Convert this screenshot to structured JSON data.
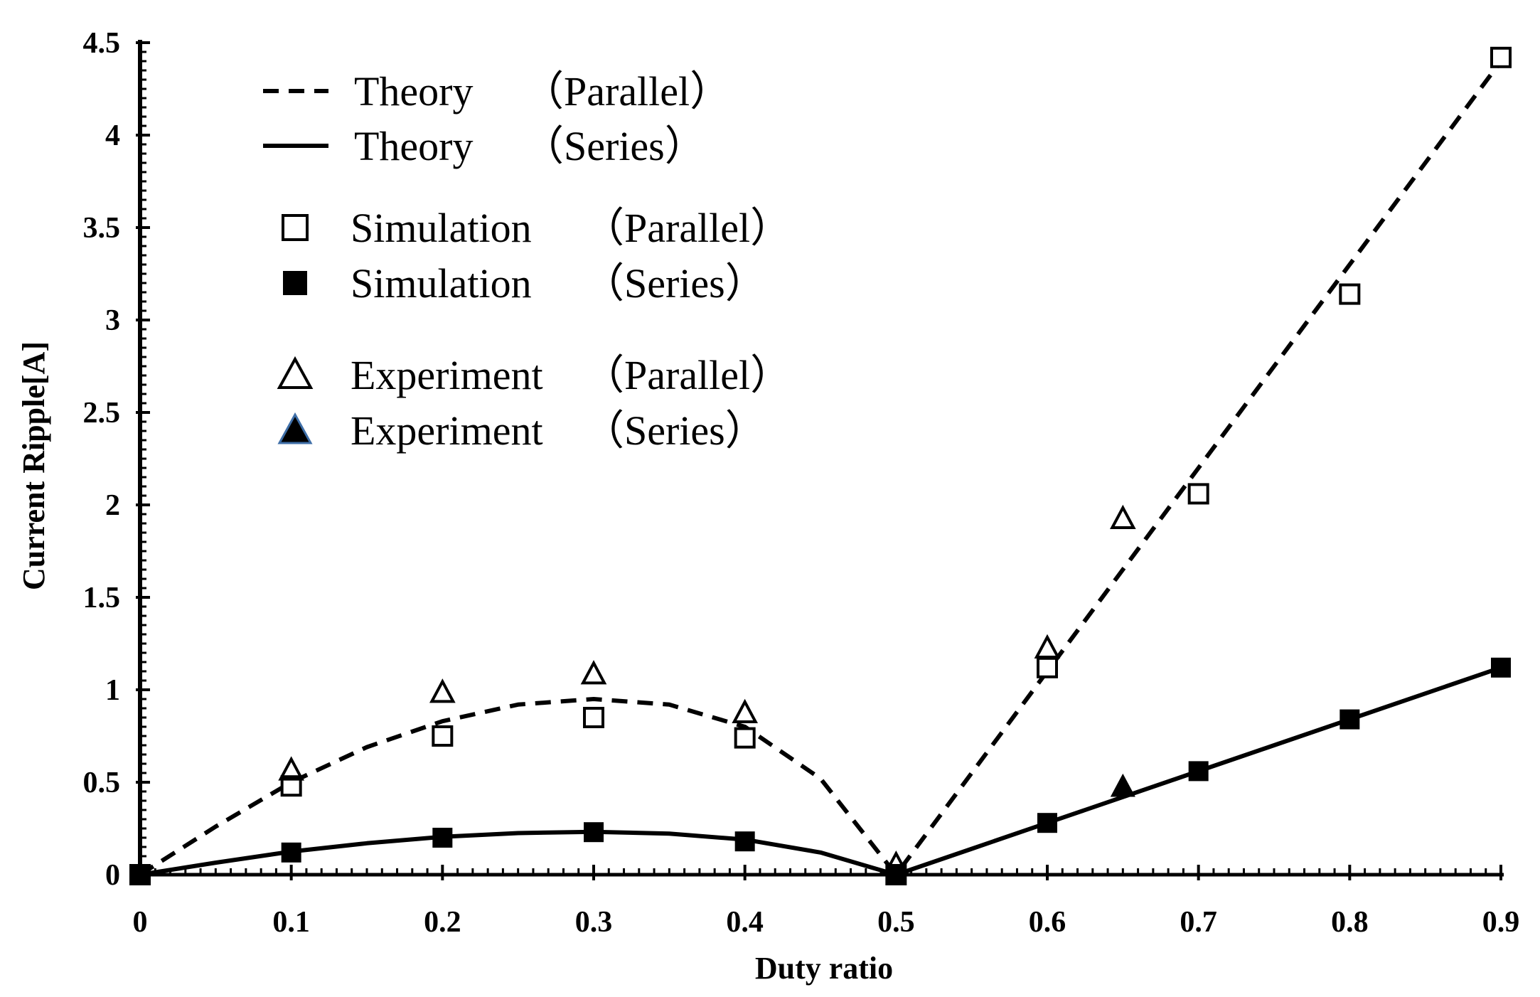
{
  "chart_data": {
    "type": "line",
    "title": "",
    "xlabel": "Duty ratio",
    "ylabel": "Current Ripple[A]",
    "xlim": [
      0,
      0.9
    ],
    "ylim": [
      0,
      4.5
    ],
    "x_ticks": [
      "0",
      "0.1",
      "0.2",
      "0.3",
      "0.4",
      "0.5",
      "0.6",
      "0.7",
      "0.8",
      "0.9"
    ],
    "y_ticks": [
      "0",
      "0.5",
      "1",
      "1.5",
      "2",
      "2.5",
      "3",
      "3.5",
      "4",
      "4.5"
    ],
    "x_tick_values": [
      0,
      0.1,
      0.2,
      0.3,
      0.4,
      0.5,
      0.6,
      0.7,
      0.8,
      0.9
    ],
    "y_tick_values": [
      0,
      0.5,
      1,
      1.5,
      2,
      2.5,
      3,
      3.5,
      4,
      4.5
    ],
    "legend_position": "top-left",
    "grid": false,
    "series": [
      {
        "name": "Theory （Parallel）",
        "label_main": "Theory",
        "label_paren": "（Parallel）",
        "kind": "line",
        "style": "dashed",
        "color": "#000000",
        "x": [
          0,
          0.05,
          0.1,
          0.15,
          0.2,
          0.25,
          0.3,
          0.35,
          0.4,
          0.45,
          0.5,
          0.55,
          0.6,
          0.65,
          0.7,
          0.75,
          0.8,
          0.85,
          0.9
        ],
        "y": [
          0,
          0.26,
          0.5,
          0.69,
          0.83,
          0.92,
          0.95,
          0.92,
          0.8,
          0.52,
          0,
          0.55,
          1.1,
          1.65,
          2.2,
          2.75,
          3.3,
          3.85,
          4.4
        ]
      },
      {
        "name": "Theory （Series）",
        "label_main": "Theory",
        "label_paren": "（Series）",
        "kind": "line",
        "style": "solid",
        "color": "#000000",
        "x": [
          0,
          0.05,
          0.1,
          0.15,
          0.2,
          0.25,
          0.3,
          0.35,
          0.4,
          0.45,
          0.5,
          0.55,
          0.6,
          0.65,
          0.7,
          0.75,
          0.8,
          0.85,
          0.9
        ],
        "y": [
          0,
          0.065,
          0.125,
          0.17,
          0.205,
          0.225,
          0.232,
          0.222,
          0.19,
          0.12,
          0,
          0.14,
          0.28,
          0.42,
          0.56,
          0.7,
          0.84,
          0.98,
          1.12
        ]
      },
      {
        "name": "Simulation （Parallel）",
        "label_main": "Simulation",
        "label_paren": "（Parallel）",
        "kind": "marker",
        "marker": "open-square",
        "color": "#000000",
        "x": [
          0,
          0.1,
          0.2,
          0.3,
          0.4,
          0.5,
          0.6,
          0.7,
          0.8,
          0.9
        ],
        "y": [
          0,
          0.48,
          0.75,
          0.85,
          0.74,
          0,
          1.12,
          2.06,
          3.14,
          4.42
        ]
      },
      {
        "name": "Simulation （Series）",
        "label_main": "Simulation",
        "label_paren": "（Series）",
        "kind": "marker",
        "marker": "filled-square",
        "color": "#000000",
        "x": [
          0,
          0.1,
          0.2,
          0.3,
          0.4,
          0.5,
          0.6,
          0.7,
          0.8,
          0.9
        ],
        "y": [
          0,
          0.12,
          0.2,
          0.23,
          0.18,
          0,
          0.28,
          0.56,
          0.84,
          1.12
        ]
      },
      {
        "name": "Experiment（Parallel）",
        "label_main": "Experiment",
        "label_paren": "（Parallel）",
        "kind": "marker",
        "marker": "open-triangle",
        "color": "#000000",
        "x": [
          0.1,
          0.2,
          0.3,
          0.4,
          0.5,
          0.6,
          0.65
        ],
        "y": [
          0.56,
          0.98,
          1.08,
          0.87,
          0.05,
          1.22,
          1.92
        ]
      },
      {
        "name": "Experiment （Series）",
        "label_main": "Experiment",
        "label_paren": "（Series）",
        "kind": "marker",
        "marker": "filled-triangle",
        "color": "#000000",
        "legend_stroke": "#3f6fa8",
        "x": [
          0.65
        ],
        "y": [
          0.47
        ]
      }
    ]
  }
}
